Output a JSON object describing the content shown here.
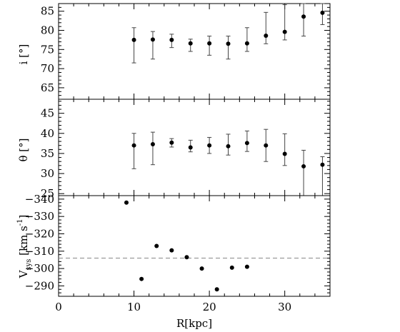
{
  "chart_data": [
    {
      "type": "scatter",
      "panel": "top",
      "ylabel": "i [°]",
      "xlim": [
        0,
        36
      ],
      "ylim": [
        62,
        87
      ],
      "yticks": [
        65,
        70,
        75,
        80,
        85
      ],
      "points": [
        {
          "x": 10,
          "y": 77.5,
          "lo": 71.5,
          "hi": 80.7
        },
        {
          "x": 12.5,
          "y": 77.6,
          "lo": 72.5,
          "hi": 79.7
        },
        {
          "x": 15,
          "y": 77.5,
          "lo": 75.5,
          "hi": 79.0
        },
        {
          "x": 17.5,
          "y": 76.6,
          "lo": 74.5,
          "hi": 77.7
        },
        {
          "x": 20,
          "y": 76.6,
          "lo": 73.5,
          "hi": 78.5
        },
        {
          "x": 22.5,
          "y": 76.5,
          "lo": 72.5,
          "hi": 78.5
        },
        {
          "x": 25,
          "y": 76.6,
          "lo": 74.5,
          "hi": 80.7
        },
        {
          "x": 27.5,
          "y": 78.6,
          "lo": 76.5,
          "hi": 84.7
        },
        {
          "x": 30,
          "y": 79.6,
          "lo": 77.5,
          "hi": 86.7
        },
        {
          "x": 32.5,
          "y": 83.6,
          "lo": 78.5,
          "hi": 87.0
        },
        {
          "x": 35,
          "y": 84.6,
          "lo": 81.5,
          "hi": 87.0
        }
      ]
    },
    {
      "type": "scatter",
      "panel": "middle",
      "ylabel": "θ [°]",
      "xlim": [
        0,
        36
      ],
      "ylim": [
        24.5,
        48.5
      ],
      "yticks": [
        25,
        30,
        35,
        40,
        45
      ],
      "points": [
        {
          "x": 10,
          "y": 37.0,
          "lo": 31.2,
          "hi": 40.0
        },
        {
          "x": 12.5,
          "y": 37.3,
          "lo": 32.2,
          "hi": 40.3
        },
        {
          "x": 15,
          "y": 37.7,
          "lo": 36.6,
          "hi": 38.7
        },
        {
          "x": 17.5,
          "y": 36.5,
          "lo": 35.4,
          "hi": 38.3
        },
        {
          "x": 20,
          "y": 37.0,
          "lo": 35.0,
          "hi": 39.0
        },
        {
          "x": 22.5,
          "y": 36.8,
          "lo": 34.6,
          "hi": 39.8
        },
        {
          "x": 25,
          "y": 37.6,
          "lo": 35.5,
          "hi": 40.6
        },
        {
          "x": 27.5,
          "y": 37.0,
          "lo": 33.0,
          "hi": 41.0
        },
        {
          "x": 30,
          "y": 34.9,
          "lo": 32.0,
          "hi": 39.9
        },
        {
          "x": 32.5,
          "y": 31.8,
          "lo": 24.5,
          "hi": 35.8
        },
        {
          "x": 35,
          "y": 32.2,
          "lo": 24.5,
          "hi": 34.2
        }
      ]
    },
    {
      "type": "scatter",
      "panel": "bottom",
      "ylabel": "V_sys [km s^-1]",
      "ylabel_main": "V",
      "ylabel_sub": "sys",
      "ylabel_rest": " [km s",
      "ylabel_sup": "-1",
      "ylabel_close": "]",
      "xlabel": "R[kpc]",
      "xlim": [
        0,
        36
      ],
      "ylim": [
        -342,
        -284
      ],
      "y_reversed": true,
      "yticks": [
        -340,
        -330,
        -320,
        -310,
        -300,
        -290
      ],
      "ytick_labels": [
        "−340",
        "−330",
        "−320",
        "−310",
        "−300",
        "−290"
      ],
      "xticks": [
        0,
        10,
        20,
        30
      ],
      "points": [
        {
          "x": 9,
          "y": -338.0
        },
        {
          "x": 11,
          "y": -294.0
        },
        {
          "x": 13,
          "y": -313.0
        },
        {
          "x": 15,
          "y": -310.5
        },
        {
          "x": 17,
          "y": -306.5
        },
        {
          "x": 19,
          "y": -300.0
        },
        {
          "x": 21,
          "y": -288.0
        },
        {
          "x": 23,
          "y": -300.5
        },
        {
          "x": 25,
          "y": -301.0
        }
      ],
      "reference_line": {
        "y": -306.0,
        "style": "dashed"
      }
    }
  ]
}
